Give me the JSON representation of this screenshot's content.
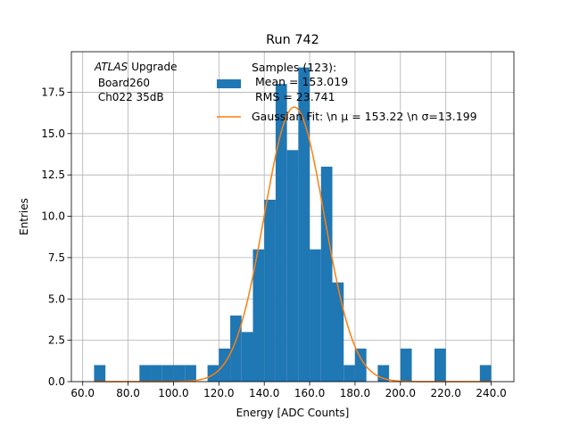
{
  "chart_data": {
    "type": "bar",
    "title": "Run 742",
    "xlabel": "Energy [ADC Counts]",
    "ylabel": "Entries",
    "xlim": [
      55,
      250
    ],
    "ylim": [
      0,
      19.95
    ],
    "grid": true,
    "legend_position": "top-right",
    "xticks": [
      60,
      80,
      100,
      120,
      140,
      160,
      180,
      200,
      220,
      240
    ],
    "xtick_labels": [
      "60.0",
      "80.0",
      "100.0",
      "120.0",
      "140.0",
      "160.0",
      "180.0",
      "200.0",
      "220.0",
      "240.0"
    ],
    "yticks": [
      0,
      2.5,
      5,
      7.5,
      10,
      12.5,
      15,
      17.5
    ],
    "ytick_labels": [
      "0.0",
      "2.5",
      "5.0",
      "7.5",
      "10.0",
      "12.5",
      "15.0",
      "17.5"
    ],
    "annotation_lines": [
      "Upgrade",
      " Board260",
      " Ch022 35dB"
    ],
    "annotation_italic": "ATLAS",
    "histogram": {
      "name_lines": [
        "Samples (123):",
        " Mean = 153.019",
        " RMS = 23.741"
      ],
      "color": "#1f77b4",
      "bin_width": 5,
      "bins": [
        {
          "x0": 65,
          "value": 1
        },
        {
          "x0": 85,
          "value": 1
        },
        {
          "x0": 90,
          "value": 1
        },
        {
          "x0": 95,
          "value": 1
        },
        {
          "x0": 100,
          "value": 1
        },
        {
          "x0": 105,
          "value": 1
        },
        {
          "x0": 115,
          "value": 1
        },
        {
          "x0": 120,
          "value": 2
        },
        {
          "x0": 125,
          "value": 4
        },
        {
          "x0": 130,
          "value": 3
        },
        {
          "x0": 135,
          "value": 8
        },
        {
          "x0": 140,
          "value": 11
        },
        {
          "x0": 145,
          "value": 18
        },
        {
          "x0": 150,
          "value": 14
        },
        {
          "x0": 155,
          "value": 19
        },
        {
          "x0": 160,
          "value": 8
        },
        {
          "x0": 165,
          "value": 13
        },
        {
          "x0": 170,
          "value": 6
        },
        {
          "x0": 175,
          "value": 1
        },
        {
          "x0": 180,
          "value": 2
        },
        {
          "x0": 190,
          "value": 1
        },
        {
          "x0": 200,
          "value": 2
        },
        {
          "x0": 215,
          "value": 2
        },
        {
          "x0": 235,
          "value": 1
        }
      ]
    },
    "fit": {
      "name": "Gaussian Fit: \\n μ = 153.22 \\n σ=13.199",
      "color": "#ff7f0e",
      "mu": 153.22,
      "sigma": 13.199,
      "amplitude": 16.6,
      "x_range": [
        65,
        240
      ]
    }
  }
}
